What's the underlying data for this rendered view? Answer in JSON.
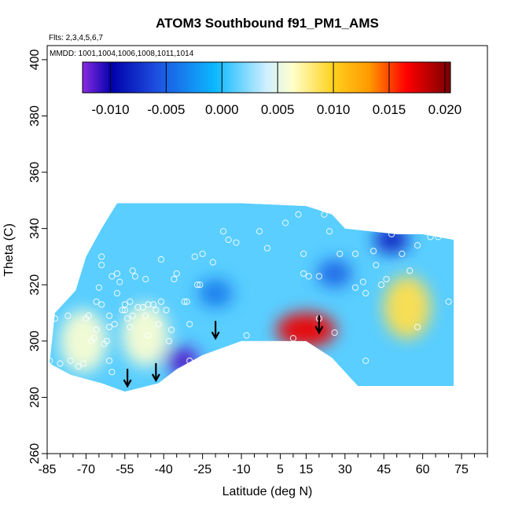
{
  "chart_data": {
    "type": "heatmap",
    "title": "ATOM3 Southbound f91_PM1_AMS",
    "flights_note": "Flts: 2,3,4,5,6,7",
    "mmdd_note": "MMDD: 1001,1004,1006,1008,1011,1014",
    "xlabel": "Latitude (deg N)",
    "ylabel": "Theta (C)",
    "xlim": [
      -85,
      85
    ],
    "ylim": [
      260,
      405
    ],
    "x_ticks": [
      -85,
      -70,
      -55,
      -40,
      -25,
      -10,
      5,
      15,
      30,
      45,
      60,
      75
    ],
    "y_ticks": [
      260,
      280,
      300,
      320,
      340,
      360,
      380,
      400
    ],
    "colorbar": {
      "range": [
        -0.0125,
        0.0205
      ],
      "ticks": [
        -0.01,
        -0.005,
        0.0,
        0.005,
        0.01,
        0.015,
        0.02
      ],
      "tick_labels": [
        "-0.010",
        "-0.005",
        "0.000",
        "0.005",
        "0.010",
        "0.015",
        "0.020"
      ]
    },
    "domain_outline": [
      [
        -84,
        293
      ],
      [
        -82,
        310
      ],
      [
        -74,
        318
      ],
      [
        -70,
        330
      ],
      [
        -64,
        340
      ],
      [
        -58,
        349
      ],
      [
        -10,
        349
      ],
      [
        15,
        348
      ],
      [
        25,
        345
      ],
      [
        30,
        340
      ],
      [
        50,
        338
      ],
      [
        60,
        338
      ],
      [
        72,
        336
      ],
      [
        72,
        284
      ],
      [
        35,
        284
      ],
      [
        25,
        294
      ],
      [
        15,
        300
      ],
      [
        0,
        300
      ],
      [
        -10,
        300
      ],
      [
        -25,
        295
      ],
      [
        -35,
        290
      ],
      [
        -42,
        285
      ],
      [
        -55,
        282
      ],
      [
        -64,
        285
      ],
      [
        -76,
        288
      ],
      [
        -84,
        292
      ]
    ],
    "features": [
      {
        "type": "min",
        "lat": -33,
        "theta": 293,
        "value": -0.0115
      },
      {
        "type": "min",
        "lat": -20,
        "theta": 317,
        "value": -0.004
      },
      {
        "type": "min",
        "lat": 48,
        "theta": 336,
        "value": -0.008
      },
      {
        "type": "min",
        "lat": 26,
        "theta": 324,
        "value": -0.005
      },
      {
        "type": "max",
        "lat": 15,
        "theta": 304,
        "value": 0.017
      },
      {
        "type": "max",
        "lat": 54,
        "theta": 312,
        "value": 0.009
      },
      {
        "type": "max",
        "lat": -47,
        "theta": 302,
        "value": 0.006
      },
      {
        "type": "max",
        "lat": -71,
        "theta": 300,
        "value": 0.006
      }
    ],
    "arrows": [
      {
        "lat": -54,
        "theta": 284
      },
      {
        "lat": -43,
        "theta": 286
      },
      {
        "lat": -20,
        "theta": 301
      },
      {
        "lat": 20,
        "theta": 303
      }
    ],
    "sample_points": [
      [
        -84,
        293
      ],
      [
        -82,
        308
      ],
      [
        -80,
        292
      ],
      [
        -77,
        309
      ],
      [
        -76,
        293
      ],
      [
        -73,
        291
      ],
      [
        -71,
        292
      ],
      [
        -70,
        308
      ],
      [
        -69,
        309
      ],
      [
        -68,
        300
      ],
      [
        -67,
        301
      ],
      [
        -66,
        304
      ],
      [
        -66,
        314
      ],
      [
        -65,
        319
      ],
      [
        -64,
        313
      ],
      [
        -64,
        327
      ],
      [
        -64,
        330
      ],
      [
        -63,
        299
      ],
      [
        -62,
        300
      ],
      [
        -61,
        293
      ],
      [
        -60,
        289
      ],
      [
        -61,
        309
      ],
      [
        -61,
        305
      ],
      [
        -60,
        323
      ],
      [
        -59,
        306
      ],
      [
        -58,
        317
      ],
      [
        -58,
        324
      ],
      [
        -57,
        321
      ],
      [
        -56,
        311
      ],
      [
        -55,
        311
      ],
      [
        -55,
        313
      ],
      [
        -54,
        308
      ],
      [
        -53,
        314
      ],
      [
        -53,
        305
      ],
      [
        -52,
        309
      ],
      [
        -52,
        325
      ],
      [
        -51,
        323
      ],
      [
        -50,
        312
      ],
      [
        -48,
        312
      ],
      [
        -47,
        309
      ],
      [
        -47,
        322
      ],
      [
        -46,
        313
      ],
      [
        -46,
        302
      ],
      [
        -44,
        313
      ],
      [
        -43,
        311
      ],
      [
        -42,
        306
      ],
      [
        -41,
        314
      ],
      [
        -41,
        329
      ],
      [
        -39,
        311
      ],
      [
        -38,
        300
      ],
      [
        -37,
        304
      ],
      [
        -36,
        322
      ],
      [
        -35,
        324
      ],
      [
        -32,
        314
      ],
      [
        -31,
        314
      ],
      [
        -30,
        293
      ],
      [
        -30,
        306
      ],
      [
        -28,
        330
      ],
      [
        -27,
        320
      ],
      [
        -26,
        320
      ],
      [
        -25,
        331
      ],
      [
        -21,
        328
      ],
      [
        -17,
        339
      ],
      [
        -15,
        336
      ],
      [
        -12,
        335
      ],
      [
        -8,
        302
      ],
      [
        -3,
        339
      ],
      [
        0,
        333
      ],
      [
        7,
        342
      ],
      [
        10,
        301
      ],
      [
        12,
        345
      ],
      [
        14,
        331
      ],
      [
        14,
        324
      ],
      [
        16,
        323
      ],
      [
        20,
        323
      ],
      [
        20,
        308
      ],
      [
        22,
        345
      ],
      [
        24,
        339
      ],
      [
        26,
        303
      ],
      [
        28,
        331
      ],
      [
        34,
        331
      ],
      [
        34,
        319
      ],
      [
        37,
        321
      ],
      [
        38,
        293
      ],
      [
        38,
        317
      ],
      [
        41,
        332
      ],
      [
        42,
        327
      ],
      [
        44,
        320
      ],
      [
        46,
        322
      ],
      [
        48,
        338
      ],
      [
        52,
        331
      ],
      [
        55,
        325
      ],
      [
        58,
        305
      ],
      [
        58,
        334
      ],
      [
        63,
        337
      ],
      [
        66,
        337
      ],
      [
        70,
        314
      ]
    ]
  }
}
